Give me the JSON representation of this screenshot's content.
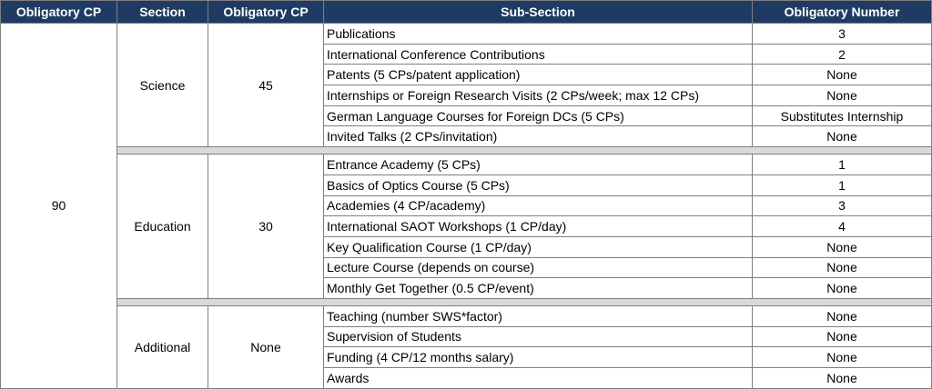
{
  "headers": [
    "Obligatory CP",
    "Section",
    "Obligatory CP",
    "Sub-Section",
    "Obligatory Number"
  ],
  "total_cp": "90",
  "sections": [
    {
      "name": "Science",
      "cp": "45",
      "rows": [
        {
          "sub": "Publications",
          "num": "3"
        },
        {
          "sub": "International Conference Contributions",
          "num": "2"
        },
        {
          "sub": "Patents (5 CPs/patent application)",
          "num": "None"
        },
        {
          "sub": "Internships or Foreign Research Visits (2 CPs/week; max 12 CPs)",
          "num": "None"
        },
        {
          "sub": "German Language Courses for Foreign DCs (5 CPs)",
          "num": "Substitutes Internship"
        },
        {
          "sub": "Invited Talks (2 CPs/invitation)",
          "num": "None"
        }
      ]
    },
    {
      "name": "Education",
      "cp": "30",
      "rows": [
        {
          "sub": "Entrance Academy (5 CPs)",
          "num": "1"
        },
        {
          "sub": "Basics of Optics Course (5 CPs)",
          "num": "1"
        },
        {
          "sub": "Academies (4 CP/academy)",
          "num": "3"
        },
        {
          "sub": "International SAOT Workshops (1 CP/day)",
          "num": "4"
        },
        {
          "sub": "Key Qualification Course (1 CP/day)",
          "num": "None"
        },
        {
          "sub": "Lecture Course (depends on course)",
          "num": "None"
        },
        {
          "sub": "Monthly Get Together (0.5 CP/event)",
          "num": "None"
        }
      ]
    },
    {
      "name": "Additional",
      "cp": "None",
      "rows": [
        {
          "sub": "Teaching (number SWS*factor)",
          "num": "None"
        },
        {
          "sub": "Supervision of Students",
          "num": "None"
        },
        {
          "sub": "Funding (4 CP/12 months salary)",
          "num": "None"
        },
        {
          "sub": "Awards",
          "num": "None"
        }
      ]
    }
  ]
}
